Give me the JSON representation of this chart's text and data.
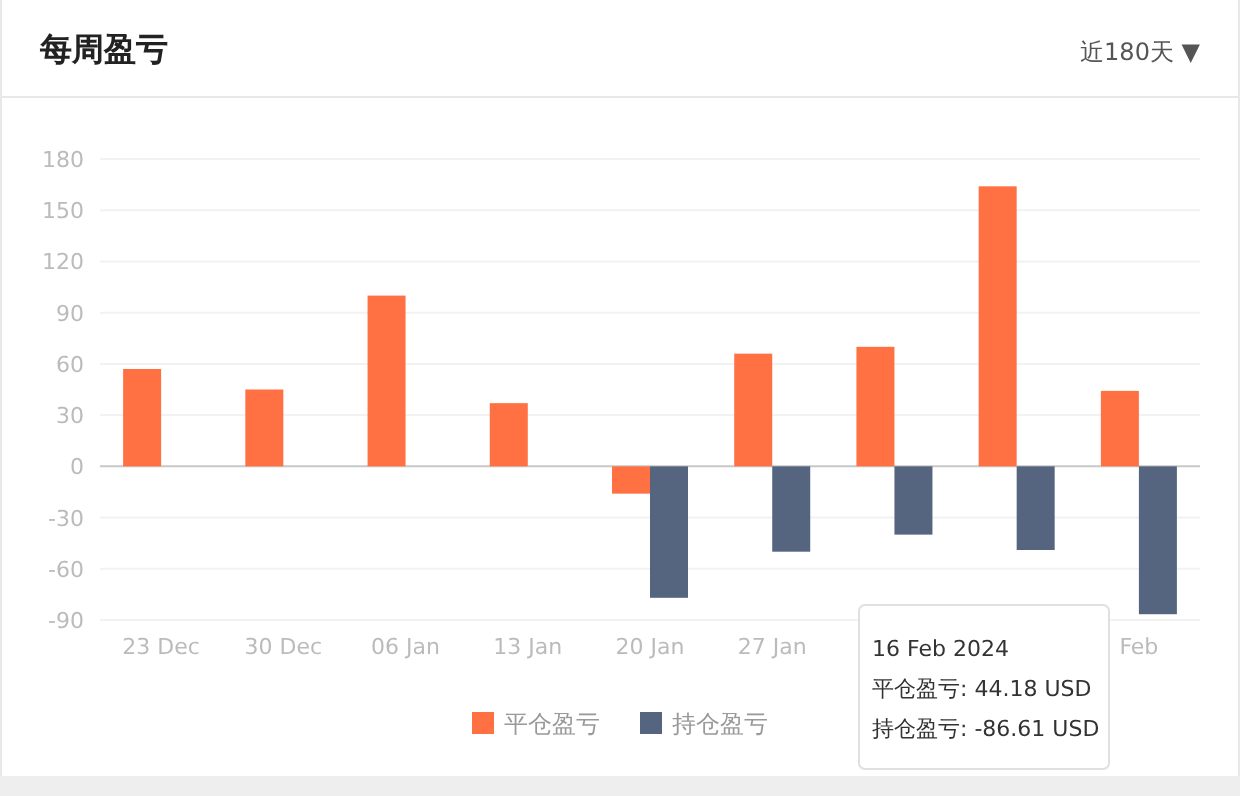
{
  "chart_data": {
    "type": "bar",
    "title": "每周盈亏",
    "subtitle": "近180天 ▼",
    "categories": [
      "23 Dec",
      "30 Dec",
      "06 Jan",
      "13 Jan",
      "20 Jan",
      "27 Jan",
      null,
      null,
      "Feb"
    ],
    "series": [
      {
        "name": "平仓盈亏",
        "color": "#ff7043",
        "values": [
          57,
          45,
          100,
          37,
          -16,
          66,
          70,
          164,
          44.18
        ]
      },
      {
        "name": "持仓盈亏",
        "color": "#56657f",
        "values": [
          null,
          null,
          null,
          null,
          -77,
          -50,
          -40,
          -49,
          -86.61
        ]
      }
    ],
    "ylim": [
      -90,
      180
    ],
    "yticks": [
      -90,
      -60,
      -30,
      0,
      30,
      60,
      90,
      120,
      150,
      180
    ],
    "grid": "y",
    "legend": "bottom",
    "annotations": [
      "16 Feb 2024",
      "平仓盈亏: 44.18 USD",
      "持仓盈亏: -86.61 USD"
    ]
  }
}
